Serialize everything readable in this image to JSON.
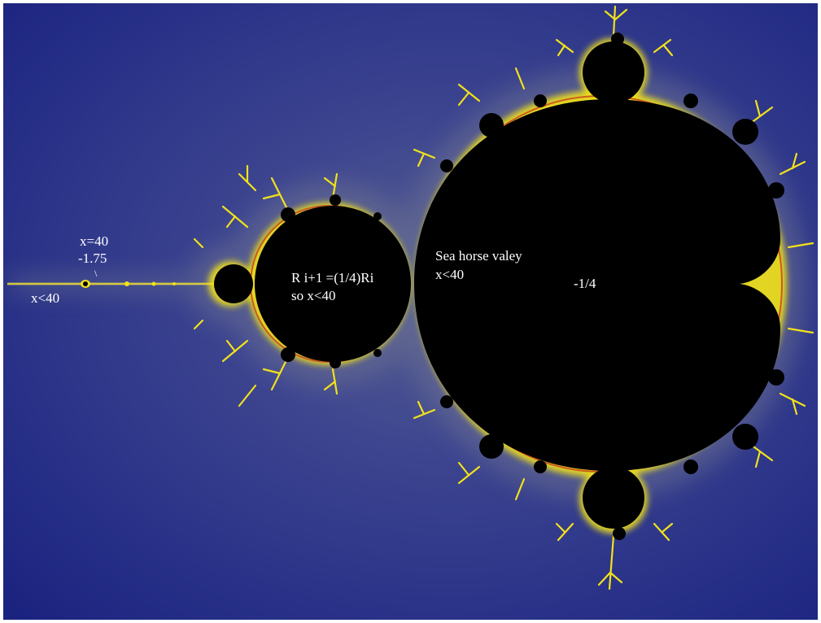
{
  "colors": {
    "background_outer": "#1b2380",
    "background_inner": "#3a4390",
    "halo": "#8a8f6a",
    "boundary_yellow": "#f2e21a",
    "boundary_red": "#c8401a",
    "set_interior": "#000000",
    "label_text": "#ffffff"
  },
  "labels": {
    "needle_top_value": "x=40",
    "needle_coordinate": "-1.75",
    "needle_tick": "\\",
    "needle_axis_left": "x<40",
    "bulb_relation": "R i+1 =(1/4)Ri",
    "bulb_conclusion": "so x<40",
    "seahorse_name": "Sea horse valey",
    "seahorse_value": "x<40",
    "cusp_coordinate": "-1/4"
  }
}
